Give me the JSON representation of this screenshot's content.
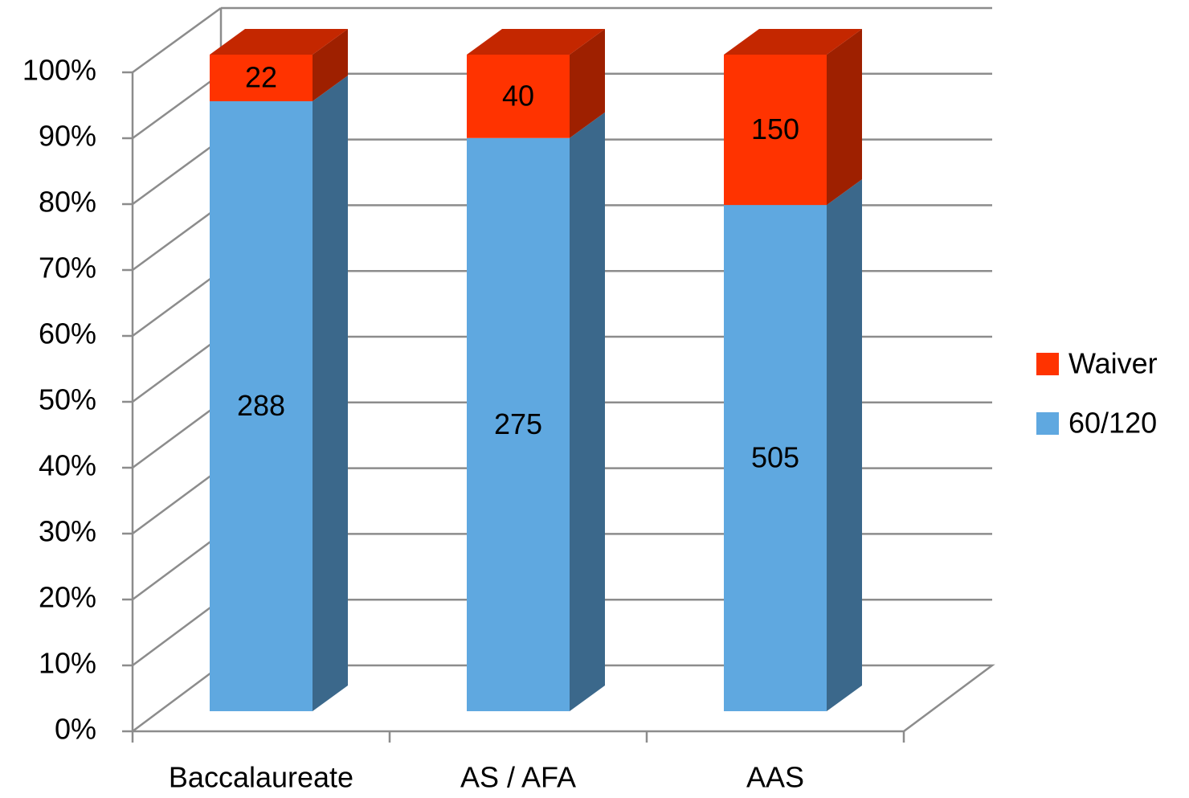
{
  "chart_data": {
    "type": "bar",
    "stack": "percent",
    "categories": [
      "Baccalaureate",
      "AS / AFA",
      "AAS"
    ],
    "series": [
      {
        "name": "60/120",
        "color": "#5fa8e0",
        "values": [
          288,
          275,
          505
        ]
      },
      {
        "name": "Waiver",
        "color": "#ff3300",
        "values": [
          22,
          40,
          150
        ]
      }
    ],
    "ylim": [
      0,
      100
    ],
    "yticks": [
      {
        "value": 0,
        "label": "0%"
      },
      {
        "value": 10,
        "label": "10%"
      },
      {
        "value": 20,
        "label": "20%"
      },
      {
        "value": 30,
        "label": "30%"
      },
      {
        "value": 40,
        "label": "40%"
      },
      {
        "value": 50,
        "label": "50%"
      },
      {
        "value": 60,
        "label": "60%"
      },
      {
        "value": 70,
        "label": "70%"
      },
      {
        "value": 80,
        "label": "80%"
      },
      {
        "value": 90,
        "label": "90%"
      },
      {
        "value": 100,
        "label": "100%"
      }
    ],
    "grid": true,
    "legend": "right"
  }
}
